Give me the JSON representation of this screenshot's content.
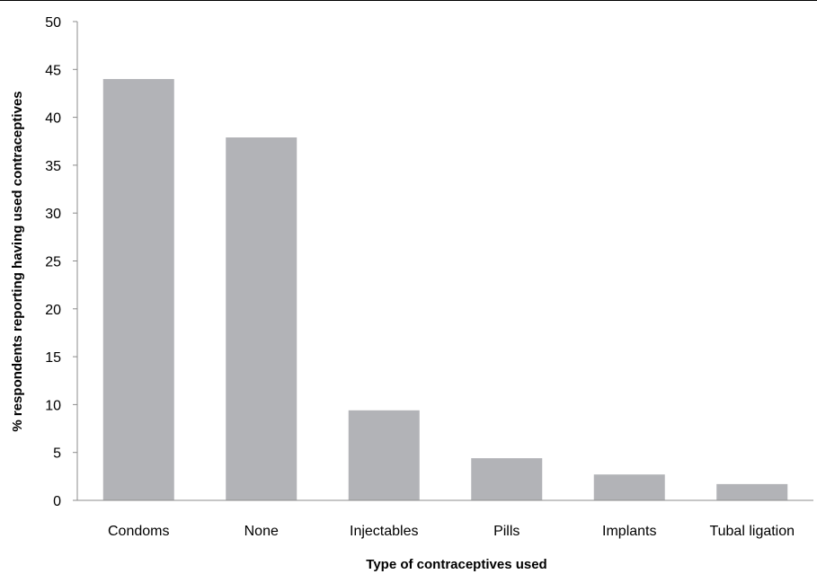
{
  "chart_data": {
    "type": "bar",
    "title": "",
    "xlabel": "Type of contraceptives used",
    "ylabel": "% respondents reporting  having used contraceptives",
    "categories": [
      "Condoms",
      "None",
      "Injectables",
      "Pills",
      "Implants",
      "Tubal ligation"
    ],
    "values": [
      44,
      37.9,
      9.4,
      4.4,
      2.7,
      1.7
    ],
    "ylim": [
      0,
      50
    ],
    "yticks": [
      "0",
      "5",
      "10",
      "15",
      "20",
      "25",
      "30",
      "35",
      "40",
      "45",
      "50"
    ],
    "grid": false,
    "legend": "none",
    "bar_color": "#b2b3b7"
  }
}
